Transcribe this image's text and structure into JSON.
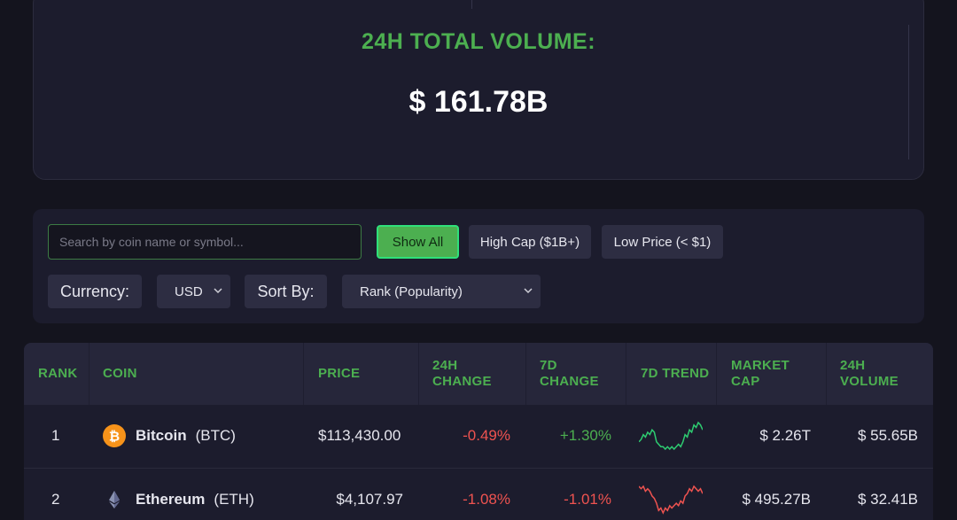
{
  "volume": {
    "title": "24H TOTAL VOLUME:",
    "value": "$ 161.78B"
  },
  "filters": {
    "search_placeholder": "Search by coin name or symbol...",
    "show_all": "Show All",
    "high_cap": "High Cap ($1B+)",
    "low_price": "Low Price (< $1)",
    "currency_label": "Currency:",
    "currency_value": "USD",
    "sort_label": "Sort By:",
    "sort_value": "Rank (Popularity)"
  },
  "table": {
    "headers": {
      "rank": "RANK",
      "coin": "COIN",
      "price": "PRICE",
      "change24_l1": "24H",
      "change24_l2": "CHANGE",
      "change7_l1": "7D",
      "change7_l2": "CHANGE",
      "trend": "7D TREND",
      "mcap_l1": "MARKET",
      "mcap_l2": "CAP",
      "vol_l1": "24H",
      "vol_l2": "VOLUME"
    },
    "rows": [
      {
        "rank": "1",
        "name": "Bitcoin",
        "symbol": "(BTC)",
        "icon": "bitcoin-icon",
        "price": "$113,430.00",
        "change24": "-0.49%",
        "change7": "+1.30%",
        "market_cap": "$ 2.26T",
        "volume": "$ 55.65B",
        "trend_color": "#2ecc71",
        "trend": [
          6,
          7,
          9,
          8,
          10,
          9,
          11,
          10,
          6,
          5,
          4,
          4,
          3,
          4,
          3,
          4,
          3,
          4,
          5,
          4,
          6,
          9,
          8,
          11,
          10,
          13,
          12,
          14,
          13,
          11
        ]
      },
      {
        "rank": "2",
        "name": "Ethereum",
        "symbol": "(ETH)",
        "icon": "ethereum-icon",
        "price": "$4,107.97",
        "change24": "-1.08%",
        "change7": "-1.01%",
        "market_cap": "$ 495.27B",
        "volume": "$ 32.41B",
        "trend_color": "#ef5350",
        "trend": [
          13,
          12,
          13,
          11,
          12,
          11,
          9,
          8,
          6,
          3,
          4,
          2,
          4,
          3,
          5,
          4,
          5,
          6,
          5,
          7,
          6,
          9,
          10,
          12,
          11,
          13,
          12,
          11,
          12,
          10
        ]
      }
    ]
  },
  "colors": {
    "accent": "#4caf50",
    "negative": "#ef5350",
    "positive": "#4caf50"
  }
}
